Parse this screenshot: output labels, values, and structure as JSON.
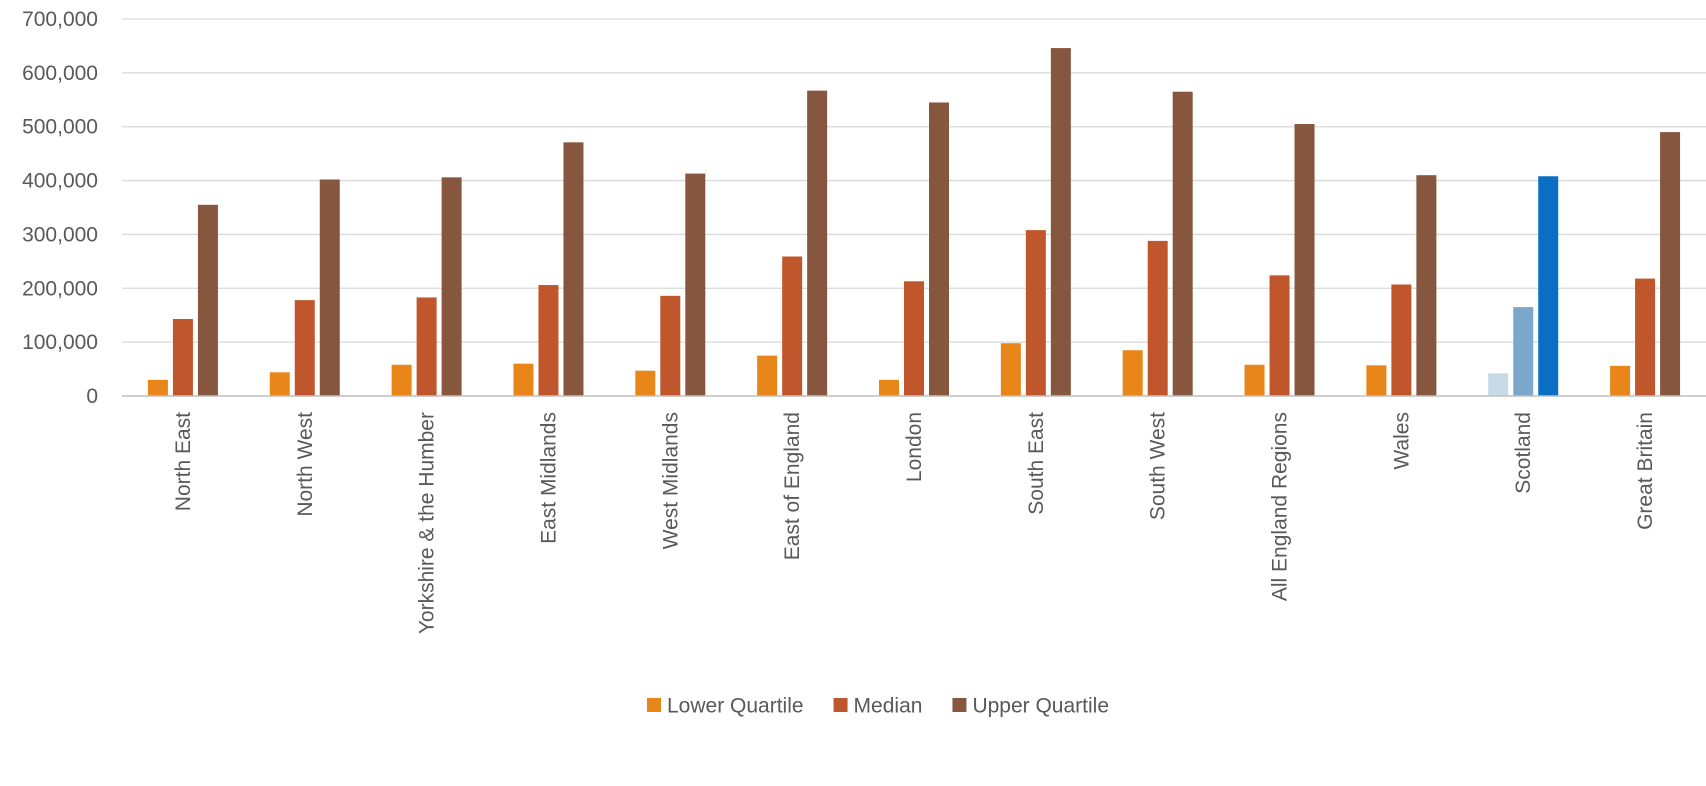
{
  "chart_data": {
    "type": "bar",
    "title": "",
    "xlabel": "",
    "ylabel": "",
    "ylim": [
      0,
      700000
    ],
    "yticks": [
      "0",
      "100,000",
      "200,000",
      "300,000",
      "400,000",
      "500,000",
      "600,000",
      "700,000"
    ],
    "ytick_values": [
      0,
      100000,
      200000,
      300000,
      400000,
      500000,
      600000,
      700000
    ],
    "grid": true,
    "legend_position": "bottom",
    "categories": [
      "North East",
      "North West",
      "Yorkshire & the Humber",
      "East Midlands",
      "West Midlands",
      "East of England",
      "London",
      "South East",
      "South West",
      "All England Regions",
      "Wales",
      "Scotland",
      "Great Britain"
    ],
    "series": [
      {
        "name": "Lower Quartile",
        "color": "#E8861A",
        "values": [
          30000,
          44000,
          58000,
          60000,
          47000,
          75000,
          30000,
          98000,
          85000,
          58000,
          57000,
          42000,
          56000
        ]
      },
      {
        "name": "Median",
        "color": "#C0562C",
        "values": [
          143000,
          178000,
          183000,
          206000,
          186000,
          259000,
          213000,
          308000,
          288000,
          224000,
          207000,
          165000,
          218000
        ]
      },
      {
        "name": "Upper Quartile",
        "color": "#87563F",
        "values": [
          355000,
          402000,
          406000,
          471000,
          413000,
          567000,
          545000,
          646000,
          565000,
          505000,
          410000,
          408000,
          490000
        ]
      }
    ],
    "highlight": {
      "category": "Scotland",
      "colors": [
        "#C6DAE8",
        "#7BA7CC",
        "#0A6FC2"
      ]
    },
    "gridline_color": "#D9D9D9",
    "axis_color": "#BFBFBF"
  }
}
